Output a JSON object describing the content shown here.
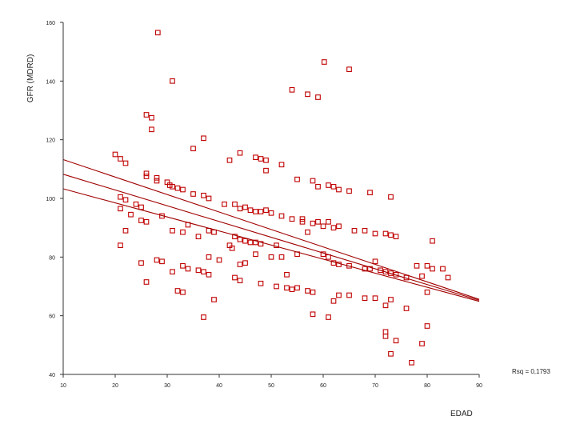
{
  "chart_data": {
    "type": "scatter",
    "title": "",
    "xlabel": "EDAD",
    "ylabel": "GFR (MDRD)",
    "xlim": [
      10,
      90
    ],
    "ylim": [
      40,
      160
    ],
    "xticks": [
      "10",
      "20",
      "30",
      "40",
      "50",
      "60",
      "70",
      "80",
      "90"
    ],
    "yticks": [
      "40",
      "60",
      "80",
      "100",
      "120",
      "140",
      "160"
    ],
    "annotation": "Rsq = 0,1793",
    "grid": false,
    "marker_color": "#c00000",
    "line_color": "#a00000",
    "points": [
      [
        28.2,
        156.5
      ],
      [
        31,
        140
      ],
      [
        60.2,
        146.5
      ],
      [
        65,
        144
      ],
      [
        54,
        137
      ],
      [
        57,
        135.5
      ],
      [
        59,
        134.5
      ],
      [
        26,
        128.5
      ],
      [
        27,
        127.5
      ],
      [
        27,
        123.5
      ],
      [
        37,
        120.5
      ],
      [
        35,
        117
      ],
      [
        44,
        115.5
      ],
      [
        47,
        114
      ],
      [
        48,
        113.5
      ],
      [
        42,
        113
      ],
      [
        49,
        113
      ],
      [
        52,
        111.5
      ],
      [
        49,
        109.5
      ],
      [
        20,
        115
      ],
      [
        21,
        113.5
      ],
      [
        22,
        112
      ],
      [
        26,
        108.5
      ],
      [
        26,
        107.5
      ],
      [
        28,
        107
      ],
      [
        28,
        106
      ],
      [
        30,
        105.5
      ],
      [
        30.5,
        104.5
      ],
      [
        31,
        104
      ],
      [
        32,
        103.5
      ],
      [
        33,
        103
      ],
      [
        35,
        101.5
      ],
      [
        37,
        101
      ],
      [
        38,
        100
      ],
      [
        21,
        100.5
      ],
      [
        22,
        99.5
      ],
      [
        24,
        98
      ],
      [
        25,
        97
      ],
      [
        21,
        96.5
      ],
      [
        23,
        94.5
      ],
      [
        25,
        92.5
      ],
      [
        26,
        92
      ],
      [
        29,
        94
      ],
      [
        31,
        89
      ],
      [
        33,
        88.5
      ],
      [
        22,
        89
      ],
      [
        21,
        84
      ],
      [
        25,
        78
      ],
      [
        26,
        71.5
      ],
      [
        28,
        79
      ],
      [
        29,
        78.5
      ],
      [
        31,
        75
      ],
      [
        32,
        68.5
      ],
      [
        33,
        68
      ],
      [
        33,
        77
      ],
      [
        34,
        76
      ],
      [
        34,
        91
      ],
      [
        36,
        87
      ],
      [
        38,
        89
      ],
      [
        39,
        88.5
      ],
      [
        38,
        80
      ],
      [
        40,
        79
      ],
      [
        36,
        75.5
      ],
      [
        37,
        75
      ],
      [
        37,
        59.5
      ],
      [
        38,
        74
      ],
      [
        39,
        65.5
      ],
      [
        41,
        98
      ],
      [
        43,
        98
      ],
      [
        44,
        96.5
      ],
      [
        45,
        97
      ],
      [
        46,
        96
      ],
      [
        47,
        95.5
      ],
      [
        48,
        95.5
      ],
      [
        49,
        96
      ],
      [
        50,
        95
      ],
      [
        52,
        94
      ],
      [
        54,
        93
      ],
      [
        42,
        84
      ],
      [
        43,
        87
      ],
      [
        44,
        86
      ],
      [
        45,
        85.5
      ],
      [
        46,
        85
      ],
      [
        47,
        85
      ],
      [
        48,
        84.5
      ],
      [
        42.5,
        83
      ],
      [
        43,
        73
      ],
      [
        44,
        77.5
      ],
      [
        44,
        72
      ],
      [
        45,
        78
      ],
      [
        47,
        81
      ],
      [
        48,
        71
      ],
      [
        50,
        80
      ],
      [
        51,
        84
      ],
      [
        52,
        80
      ],
      [
        51,
        70
      ],
      [
        53,
        69.5
      ],
      [
        53,
        74
      ],
      [
        54,
        69
      ],
      [
        55,
        69.5
      ],
      [
        55,
        81
      ],
      [
        57,
        68.5
      ],
      [
        58,
        68
      ],
      [
        55,
        106.5
      ],
      [
        58,
        106
      ],
      [
        59,
        104
      ],
      [
        61,
        104.5
      ],
      [
        62,
        104
      ],
      [
        63,
        103
      ],
      [
        65,
        102.5
      ],
      [
        69,
        102
      ],
      [
        73,
        100.5
      ],
      [
        56,
        93
      ],
      [
        56,
        92
      ],
      [
        57,
        88.5
      ],
      [
        58,
        91.5
      ],
      [
        59,
        92
      ],
      [
        60,
        90.5
      ],
      [
        61,
        92
      ],
      [
        62,
        90
      ],
      [
        63,
        90.5
      ],
      [
        66,
        89
      ],
      [
        68,
        89
      ],
      [
        70,
        88
      ],
      [
        72,
        88
      ],
      [
        73,
        87.5
      ],
      [
        74,
        87
      ],
      [
        60,
        81
      ],
      [
        61,
        80
      ],
      [
        62,
        78
      ],
      [
        63,
        77.5
      ],
      [
        65,
        77
      ],
      [
        68,
        76
      ],
      [
        69,
        76
      ],
      [
        70,
        78.5
      ],
      [
        71,
        75.5
      ],
      [
        72,
        75
      ],
      [
        73,
        74.5
      ],
      [
        74,
        74
      ],
      [
        76,
        73
      ],
      [
        78,
        77
      ],
      [
        79,
        73.5
      ],
      [
        80,
        77
      ],
      [
        81,
        76
      ],
      [
        83,
        76
      ],
      [
        84,
        73
      ],
      [
        81,
        85.5
      ],
      [
        58,
        60.5
      ],
      [
        61,
        59.5
      ],
      [
        62,
        65
      ],
      [
        63,
        67
      ],
      [
        65,
        67
      ],
      [
        68,
        66
      ],
      [
        70,
        66
      ],
      [
        72,
        63.5
      ],
      [
        73,
        65.5
      ],
      [
        72,
        54.5
      ],
      [
        72,
        53
      ],
      [
        73,
        47
      ],
      [
        74,
        51.5
      ],
      [
        76,
        62.5
      ],
      [
        77,
        44
      ],
      [
        79,
        50.5
      ],
      [
        80,
        56.5
      ],
      [
        80,
        68
      ]
    ],
    "fit_lines": [
      {
        "intercept": 119.17,
        "slope": -0.5953
      },
      {
        "intercept": 113.62,
        "slope": -0.5375
      },
      {
        "intercept": 108.07,
        "slope": -0.4797
      }
    ]
  }
}
